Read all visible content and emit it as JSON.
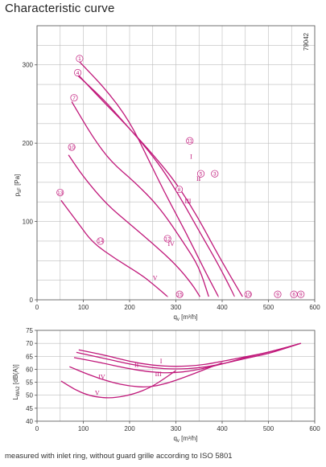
{
  "title": "Characteristic curve",
  "footer": "measured with inlet ring, without guard grille according to ISO 5801",
  "colors": {
    "curve": "#c0187a",
    "grid": "#bdbdbd",
    "axis": "#555555"
  },
  "chart_data": [
    {
      "type": "line",
      "ylabel_main": "p",
      "ylabel_sub": "sF",
      "ylabel_unit": "[Pa]",
      "xlabel_main": "q",
      "xlabel_sub": "v",
      "xlabel_unit": "[m³/h]",
      "code": "79042",
      "xlim": [
        0,
        600
      ],
      "ylim": [
        0,
        350
      ],
      "xticks": [
        0,
        100,
        200,
        300,
        400,
        500,
        600
      ],
      "yticks": [
        0,
        100,
        200,
        300
      ],
      "series": [
        {
          "name": "I",
          "points": [
            [
              90,
              305
            ],
            [
              150,
              268
            ],
            [
              200,
              228
            ],
            [
              240,
              180
            ],
            [
              280,
              132
            ],
            [
              320,
              88
            ],
            [
              360,
              40
            ],
            [
              392,
              4
            ]
          ]
        },
        {
          "name": "",
          "points": [
            [
              85,
              288
            ],
            [
              140,
              258
            ],
            [
              180,
              232
            ],
            [
              230,
              198
            ],
            [
              270,
              168
            ],
            [
              310,
              130
            ],
            [
              350,
              88
            ],
            [
              392,
              45
            ],
            [
              427,
              4
            ]
          ]
        },
        {
          "name": "II",
          "points": [
            [
              88,
              288
            ],
            [
              140,
              255
            ],
            [
              190,
              225
            ],
            [
              250,
              186
            ],
            [
              300,
              150
            ],
            [
              345,
              108
            ],
            [
              385,
              64
            ],
            [
              420,
              28
            ],
            [
              444,
              4
            ]
          ]
        },
        {
          "name": "III",
          "points": [
            [
              75,
              253
            ],
            [
              120,
              208
            ],
            [
              160,
              176
            ],
            [
              210,
              151
            ],
            [
              265,
              118
            ],
            [
              320,
              70
            ],
            [
              350,
              42
            ],
            [
              371,
              4
            ]
          ]
        },
        {
          "name": "IV",
          "points": [
            [
              68,
              185
            ],
            [
              100,
              157
            ],
            [
              150,
              122
            ],
            [
              200,
              97
            ],
            [
              250,
              72
            ],
            [
              300,
              45
            ],
            [
              335,
              20
            ],
            [
              352,
              4
            ]
          ]
        },
        {
          "name": "V",
          "points": [
            [
              52,
              127
            ],
            [
              90,
              97
            ],
            [
              120,
              73
            ],
            [
              170,
              52
            ],
            [
              225,
              32
            ],
            [
              255,
              18
            ],
            [
              282,
              4
            ]
          ]
        }
      ],
      "markers": [
        {
          "label": "1",
          "x": 92,
          "y": 308
        },
        {
          "label": "4",
          "x": 88,
          "y": 290
        },
        {
          "label": "7",
          "x": 80,
          "y": 258
        },
        {
          "label": "10",
          "x": 75,
          "y": 195
        },
        {
          "label": "13",
          "x": 50,
          "y": 137
        },
        {
          "label": "11",
          "x": 330,
          "y": 203
        },
        {
          "label": "5",
          "x": 354,
          "y": 161
        },
        {
          "label": "3",
          "x": 384,
          "y": 161
        },
        {
          "label": "8",
          "x": 307,
          "y": 141
        },
        {
          "label": "12",
          "x": 282,
          "y": 78
        },
        {
          "label": "14",
          "x": 137,
          "y": 75
        },
        {
          "label": "15",
          "x": 308,
          "y": 7
        },
        {
          "label": "10",
          "x": 456,
          "y": 7
        },
        {
          "label": "9",
          "x": 520,
          "y": 7
        },
        {
          "label": "6",
          "x": 555,
          "y": 7
        },
        {
          "label": "9",
          "x": 570,
          "y": 7
        }
      ],
      "roman_labels": [
        {
          "label": "I",
          "x": 333,
          "y": 183
        },
        {
          "label": "II",
          "x": 349,
          "y": 155
        },
        {
          "label": "III",
          "x": 326,
          "y": 126
        },
        {
          "label": "IV",
          "x": 290,
          "y": 72
        },
        {
          "label": "V",
          "x": 255,
          "y": 28
        }
      ]
    },
    {
      "type": "line",
      "ylabel_main": "L",
      "ylabel_sub": "WA2",
      "ylabel_unit": "[dB(A)]",
      "xlabel_main": "q",
      "xlabel_sub": "v",
      "xlabel_unit": "[m³/h]",
      "xlim": [
        0,
        600
      ],
      "ylim": [
        40,
        75
      ],
      "xticks": [
        0,
        100,
        200,
        300,
        400,
        500,
        600
      ],
      "yticks": [
        40,
        45,
        50,
        55,
        60,
        65,
        70,
        75
      ],
      "series": [
        {
          "name": "I",
          "points": [
            [
              90,
              67.5
            ],
            [
              150,
              65.3
            ],
            [
              200,
              63.0
            ],
            [
              250,
              61.5
            ],
            [
              300,
              61.0
            ],
            [
              350,
              61.5
            ],
            [
              400,
              63.0
            ],
            [
              450,
              64.8
            ],
            [
              500,
              66.5
            ],
            [
              570,
              70.0
            ]
          ]
        },
        {
          "name": "II",
          "points": [
            [
              85,
              66.5
            ],
            [
              150,
              64.0
            ],
            [
              200,
              62.0
            ],
            [
              250,
              60.5
            ],
            [
              300,
              60.0
            ],
            [
              350,
              60.5
            ],
            [
              400,
              62.0
            ],
            [
              450,
              64.2
            ],
            [
              500,
              66.0
            ],
            [
              570,
              70.0
            ]
          ]
        },
        {
          "name": "III",
          "points": [
            [
              80,
              64.5
            ],
            [
              140,
              62.5
            ],
            [
              190,
              60.5
            ],
            [
              240,
              59.0
            ],
            [
              290,
              58.5
            ],
            [
              340,
              59.5
            ],
            [
              400,
              62.0
            ],
            [
              450,
              64.5
            ],
            [
              510,
              67.0
            ],
            [
              570,
              70.0
            ]
          ]
        },
        {
          "name": "IV",
          "points": [
            [
              70,
              61.0
            ],
            [
              110,
              58.0
            ],
            [
              160,
              55.0
            ],
            [
              200,
              53.5
            ],
            [
              240,
              53.0
            ],
            [
              280,
              54.5
            ],
            [
              320,
              57.0
            ],
            [
              360,
              59.8
            ],
            [
              400,
              62.5
            ]
          ]
        },
        {
          "name": "V",
          "points": [
            [
              52,
              55.5
            ],
            [
              80,
              52.3
            ],
            [
              110,
              50.0
            ],
            [
              140,
              49.0
            ],
            [
              170,
              49.0
            ],
            [
              210,
              50.5
            ],
            [
              245,
              53.0
            ],
            [
              270,
              55.8
            ],
            [
              300,
              59.5
            ]
          ]
        }
      ],
      "roman_labels": [
        {
          "label": "I",
          "x": 268,
          "y": 63.3
        },
        {
          "label": "II",
          "x": 215,
          "y": 61.8
        },
        {
          "label": "III",
          "x": 262,
          "y": 58.2
        },
        {
          "label": "IV",
          "x": 140,
          "y": 57.2
        },
        {
          "label": "V",
          "x": 130,
          "y": 51.0
        }
      ]
    }
  ]
}
